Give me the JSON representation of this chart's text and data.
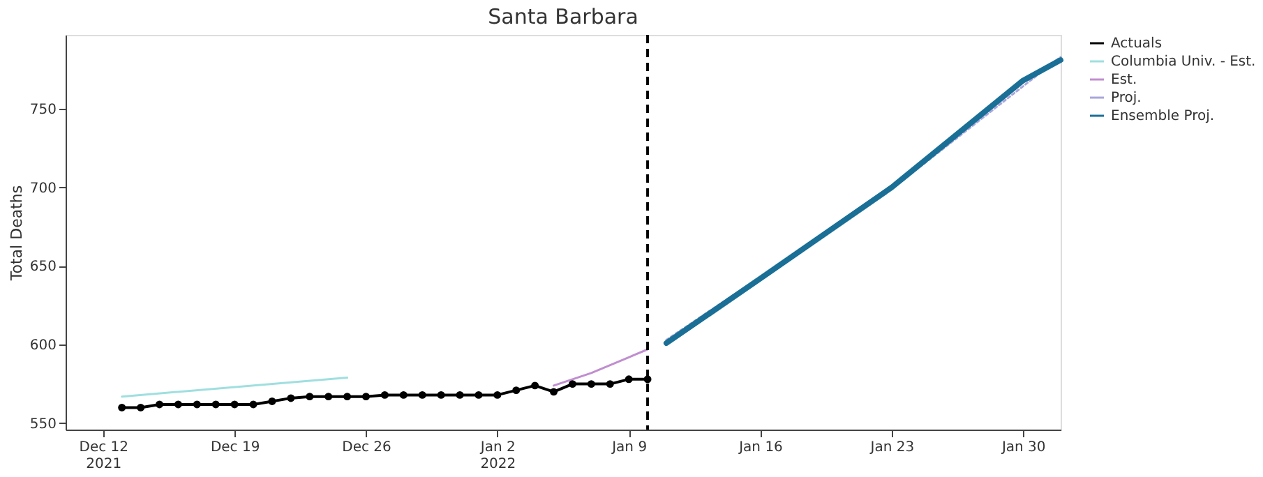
{
  "chart_data": {
    "type": "line",
    "title": "Santa Barbara",
    "ylabel": "Total Deaths",
    "xlim": [
      "2021-12-10",
      "2022-02-01"
    ],
    "xticks": [
      {
        "value": "2021-12-12",
        "label": "Dec 12\n2021"
      },
      {
        "value": "2021-12-19",
        "label": "Dec 19"
      },
      {
        "value": "2021-12-26",
        "label": "Dec 26"
      },
      {
        "value": "2022-01-02",
        "label": "Jan 2\n2022"
      },
      {
        "value": "2022-01-09",
        "label": "Jan 9"
      },
      {
        "value": "2022-01-16",
        "label": "Jan 16"
      },
      {
        "value": "2022-01-23",
        "label": "Jan 23"
      },
      {
        "value": "2022-01-30",
        "label": "Jan 30"
      }
    ],
    "ylim": [
      546,
      797
    ],
    "yticks": [
      550,
      600,
      650,
      700,
      750
    ],
    "grid": false,
    "legend": "top right",
    "ref_lines": [
      {
        "axis": "x",
        "value": "2022-01-10",
        "color": "#000000",
        "line_style": "dashed"
      }
    ],
    "series": [
      {
        "name": "Actuals",
        "color": "#000000",
        "marker": "circle",
        "line_style": "solid",
        "x": [
          "2021-12-13",
          "2021-12-14",
          "2021-12-15",
          "2021-12-16",
          "2021-12-17",
          "2021-12-18",
          "2021-12-19",
          "2021-12-20",
          "2021-12-21",
          "2021-12-22",
          "2021-12-23",
          "2021-12-24",
          "2021-12-25",
          "2021-12-26",
          "2021-12-27",
          "2021-12-28",
          "2021-12-29",
          "2021-12-30",
          "2021-12-31",
          "2022-01-01",
          "2022-01-02",
          "2022-01-03",
          "2022-01-04",
          "2022-01-05",
          "2022-01-06",
          "2022-01-07",
          "2022-01-08",
          "2022-01-09",
          "2022-01-10"
        ],
        "values": [
          560,
          560,
          562,
          562,
          562,
          562,
          562,
          562,
          564,
          566,
          567,
          567,
          567,
          567,
          568,
          568,
          568,
          568,
          568,
          568,
          568,
          571,
          574,
          570,
          575,
          575,
          575,
          578,
          578
        ]
      },
      {
        "name": "Columbia Univ. - Est.",
        "color": "#9fdfe0",
        "marker": "none",
        "line_style": "solid",
        "x": [
          "2021-12-13",
          "2021-12-25"
        ],
        "values": [
          567,
          579
        ]
      },
      {
        "name": "Est.",
        "color": "#c08ed0",
        "marker": "none",
        "line_style": "solid",
        "x": [
          "2022-01-05",
          "2022-01-06",
          "2022-01-07",
          "2022-01-08",
          "2022-01-09",
          "2022-01-10"
        ],
        "values": [
          574,
          578,
          582,
          587,
          592,
          597
        ]
      },
      {
        "name": "Proj.",
        "color": "#a9a6dc",
        "marker": "none",
        "line_style": "dotted",
        "x": [
          "2022-01-11",
          "2022-01-23",
          "2022-02-01"
        ],
        "values": [
          603,
          699,
          783
        ]
      },
      {
        "name": "Ensemble Proj.",
        "color": "#1a6f96",
        "marker": "none",
        "line_style": "solid",
        "x": [
          "2022-01-11",
          "2022-01-16",
          "2022-01-23",
          "2022-01-30",
          "2022-02-01"
        ],
        "values": [
          601,
          642,
          700,
          768,
          781
        ]
      }
    ]
  }
}
